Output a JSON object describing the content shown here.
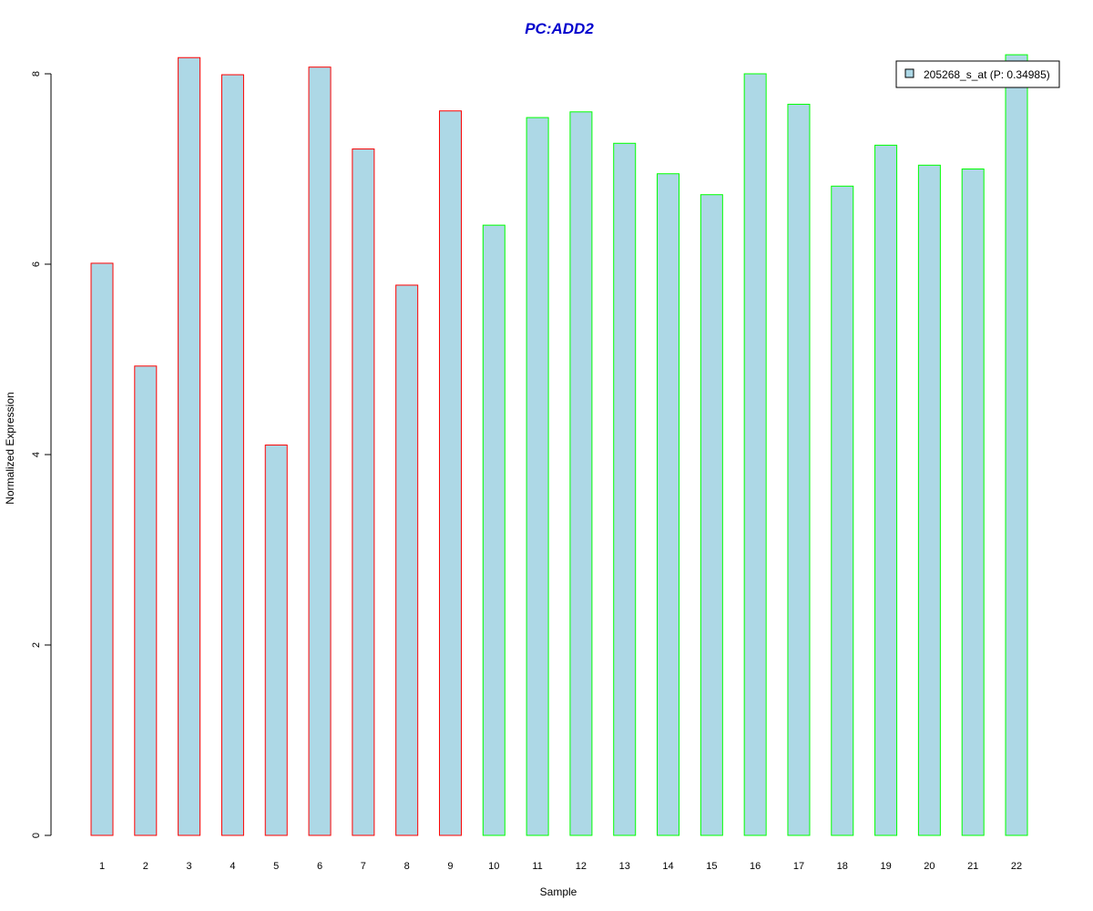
{
  "chart_data": {
    "type": "bar",
    "title": "PC:ADD2",
    "xlabel": "Sample",
    "ylabel": "Normalized Expression",
    "categories": [
      "1",
      "2",
      "3",
      "4",
      "5",
      "6",
      "7",
      "8",
      "9",
      "10",
      "11",
      "12",
      "13",
      "14",
      "15",
      "16",
      "17",
      "18",
      "19",
      "20",
      "21",
      "22"
    ],
    "series": [
      {
        "name": "205268_s_at (P: 0.34985)",
        "values": [
          6.01,
          4.93,
          8.17,
          7.99,
          4.1,
          8.07,
          7.21,
          5.78,
          7.61,
          6.41,
          7.54,
          7.6,
          7.27,
          6.95,
          6.73,
          8.0,
          7.68,
          6.82,
          7.25,
          7.04,
          7.0,
          8.2
        ]
      }
    ],
    "groups": [
      1,
      1,
      1,
      1,
      1,
      1,
      1,
      1,
      1,
      2,
      2,
      2,
      2,
      2,
      2,
      2,
      2,
      2,
      2,
      2,
      2,
      2
    ],
    "ylim": [
      0,
      8.3
    ],
    "yticks": [
      0,
      2,
      4,
      6,
      8
    ],
    "grid": false,
    "legend_position": "top-right",
    "colors": {
      "bar_fill": "#add8e6",
      "group1_border": "#ff0000",
      "group2_border": "#00ff00",
      "title": "#0000cd"
    }
  }
}
